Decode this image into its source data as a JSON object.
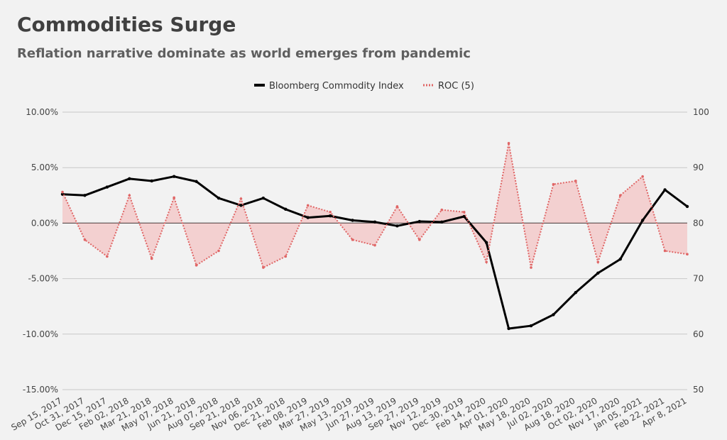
{
  "chart_data": {
    "type": "line",
    "title": "Commodities Surge",
    "subtitle": "Reflation narrative dominate as world emerges from pandemic",
    "xlabel": "",
    "ylabel_left": "",
    "ylabel_right": "",
    "x_tick_labels": [
      "Sep 15, 2017",
      "Oct 31, 2017",
      "Dec 15, 2017",
      "Feb 02, 2018",
      "Mar 21, 2018",
      "May 07, 2018",
      "Jun 21, 2018",
      "Aug 07, 2018",
      "Sep 21, 2018",
      "Nov 06, 2018",
      "Dec 21, 2018",
      "Feb 08, 2019",
      "Mar 27, 2019",
      "May 13, 2019",
      "Jun 27, 2019",
      "Aug 13, 2019",
      "Sep 27, 2019",
      "Nov 12, 2019",
      "Dec 30, 2019",
      "Feb 14, 2020",
      "Apr 01, 2020",
      "May 18, 2020",
      "Jul 02, 2020",
      "Aug 18, 2020",
      "Oct 02, 2020",
      "Nov 17, 2020",
      "Jan 05, 2021",
      "Feb 22, 2021",
      "Apr 8, 2021"
    ],
    "left_axis": {
      "ylim": [
        -0.15,
        0.1
      ],
      "tick_labels": [
        "10.00%",
        "5.00%",
        "0.00%",
        "-5.00%",
        "-10.00%",
        "-15.00%"
      ],
      "tick_values": [
        0.1,
        0.05,
        0,
        -0.05,
        -0.1,
        -0.15
      ]
    },
    "right_axis": {
      "ylim": [
        50,
        100
      ],
      "tick_labels": [
        "100",
        "90",
        "80",
        "70",
        "60",
        "50"
      ],
      "tick_values": [
        100,
        90,
        80,
        70,
        60,
        50
      ]
    },
    "grid": true,
    "legend_position": "top-center",
    "legend": [
      {
        "label": "Bloomberg Commodity Index",
        "style": "solid",
        "color": "#000000"
      },
      {
        "label": "ROC (5)",
        "style": "dotted",
        "color": "#e06666"
      }
    ],
    "series": [
      {
        "name": "Bloomberg Commodity Index",
        "axis": "right",
        "color": "#000000",
        "x": [
          "Sep 15, 2017",
          "Oct 31, 2017",
          "Dec 15, 2017",
          "Feb 02, 2018",
          "Mar 21, 2018",
          "May 07, 2018",
          "Jun 21, 2018",
          "Aug 07, 2018",
          "Sep 21, 2018",
          "Nov 06, 2018",
          "Dec 21, 2018",
          "Feb 08, 2019",
          "Mar 27, 2019",
          "May 13, 2019",
          "Jun 27, 2019",
          "Aug 13, 2019",
          "Sep 27, 2019",
          "Nov 12, 2019",
          "Dec 30, 2019",
          "Feb 14, 2020",
          "Apr 01, 2020",
          "May 18, 2020",
          "Jul 02, 2020",
          "Aug 18, 2020",
          "Oct 02, 2020",
          "Nov 17, 2020",
          "Jan 05, 2021",
          "Feb 22, 2021",
          "Apr 8, 2021"
        ],
        "values": [
          85.2,
          85.0,
          86.5,
          88.0,
          87.6,
          88.4,
          87.5,
          84.5,
          83.2,
          84.5,
          82.5,
          81.0,
          81.3,
          80.5,
          80.2,
          79.5,
          80.3,
          80.2,
          81.2,
          76.5,
          61.0,
          61.5,
          63.5,
          67.5,
          71.0,
          73.5,
          80.5,
          86.0,
          83.0
        ]
      },
      {
        "name": "ROC (5)",
        "axis": "left",
        "color": "#e06666",
        "x": [
          "Sep 15, 2017",
          "Oct 31, 2017",
          "Dec 15, 2017",
          "Feb 02, 2018",
          "Mar 21, 2018",
          "May 07, 2018",
          "Jun 21, 2018",
          "Aug 07, 2018",
          "Sep 21, 2018",
          "Nov 06, 2018",
          "Dec 21, 2018",
          "Feb 08, 2019",
          "Mar 27, 2019",
          "May 13, 2019",
          "Jun 27, 2019",
          "Aug 13, 2019",
          "Sep 27, 2019",
          "Nov 12, 2019",
          "Dec 30, 2019",
          "Feb 14, 2020",
          "Apr 01, 2020",
          "May 18, 2020",
          "Jul 02, 2020",
          "Aug 18, 2020",
          "Oct 02, 2020",
          "Nov 17, 2020",
          "Jan 05, 2021",
          "Feb 22, 2021",
          "Apr 8, 2021"
        ],
        "values": [
          0.028,
          -0.015,
          -0.03,
          0.025,
          -0.032,
          0.023,
          -0.038,
          -0.025,
          0.022,
          -0.04,
          -0.03,
          0.016,
          0.01,
          -0.015,
          -0.02,
          0.015,
          -0.015,
          0.012,
          0.01,
          -0.035,
          0.072,
          -0.04,
          0.035,
          0.038,
          -0.035,
          0.025,
          0.042,
          -0.025,
          -0.028
        ]
      }
    ]
  }
}
